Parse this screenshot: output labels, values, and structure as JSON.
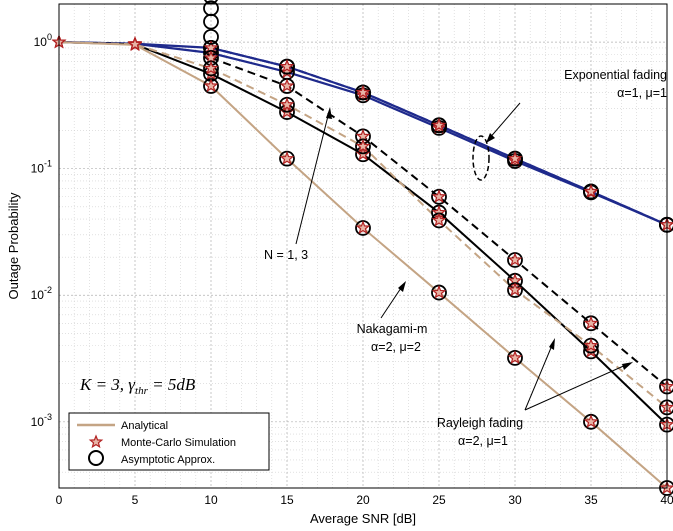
{
  "chart_data": {
    "type": "line",
    "title": "",
    "xlabel": "Average SNR [dB]",
    "ylabel": "Outage Probability",
    "xlim": [
      0,
      40
    ],
    "ylim": [
      0.0003,
      2
    ],
    "yscale": "log",
    "grid": true,
    "x_ticks": [
      "0",
      "5",
      "10",
      "15",
      "20",
      "25",
      "30",
      "35",
      "40"
    ],
    "y_ticks": [
      {
        "base": "10",
        "exp": "0"
      },
      {
        "base": "10",
        "exp": "-1"
      },
      {
        "base": "10",
        "exp": "-2"
      },
      {
        "base": "10",
        "exp": "-3"
      }
    ],
    "x": [
      0,
      5,
      10,
      15,
      20,
      25,
      30,
      35,
      40
    ],
    "legend": {
      "placement": "bottom-left",
      "entries": [
        "Analytical",
        "Monte-Carlo Simulation",
        "Asymptotic Approx."
      ]
    },
    "formula": {
      "lhs": "K = 3, γ",
      "sub": "thr",
      "rhs": " = 5dB"
    },
    "annotations": {
      "exponential": {
        "line1": "Exponential fading",
        "line2": "α=1, μ=1"
      },
      "nakagami": {
        "line1": "Nakagami-m",
        "line2": "α=2, μ=2"
      },
      "rayleigh": {
        "line1": "Rayleigh fading",
        "line2": "α=2, μ=1"
      },
      "n_label": "N = 1, 3"
    },
    "colors": {
      "analytical_tan": "#c4a484",
      "exponential_navy": "#1f2a8c",
      "black": "#000000",
      "simulation_marker": "#b22222"
    },
    "series": [
      {
        "group": "Exponential",
        "kind": "analytical",
        "values": [
          1.0,
          0.97,
          0.82,
          0.58,
          0.38,
          0.21,
          0.115,
          0.065,
          0.036
        ]
      },
      {
        "group": "Exponential",
        "kind": "asymptotic",
        "values": [
          null,
          null,
          0.9,
          0.64,
          0.4,
          0.22,
          0.12,
          0.066,
          0.036
        ]
      },
      {
        "group": "Exponential",
        "kind": "analytical",
        "values": [
          1.0,
          0.97,
          0.9,
          0.64,
          0.4,
          0.22,
          0.12,
          0.066,
          0.036
        ]
      },
      {
        "group": "Nakagami-m",
        "kind": "analytical",
        "values": [
          1.0,
          0.96,
          0.56,
          0.28,
          0.13,
          0.045,
          0.013,
          0.0036,
          0.00095
        ]
      },
      {
        "group": "Nakagami-m",
        "kind": "asymptotic",
        "values": [
          null,
          null,
          0.75,
          0.45,
          0.18,
          0.06,
          0.019,
          0.006,
          0.0019
        ]
      },
      {
        "group": "Rayleigh",
        "kind": "analytical",
        "values": [
          1.0,
          0.95,
          0.45,
          0.12,
          0.034,
          0.0105,
          0.0032,
          0.001,
          0.0003
        ]
      },
      {
        "group": "Rayleigh",
        "kind": "analytical",
        "values": [
          1.0,
          0.96,
          0.62,
          0.32,
          0.15,
          0.039,
          0.011,
          0.004,
          0.0013
        ]
      }
    ],
    "extra_markers": {
      "x": 10,
      "values": [
        2.3,
        1.85,
        1.45,
        1.1
      ]
    }
  }
}
